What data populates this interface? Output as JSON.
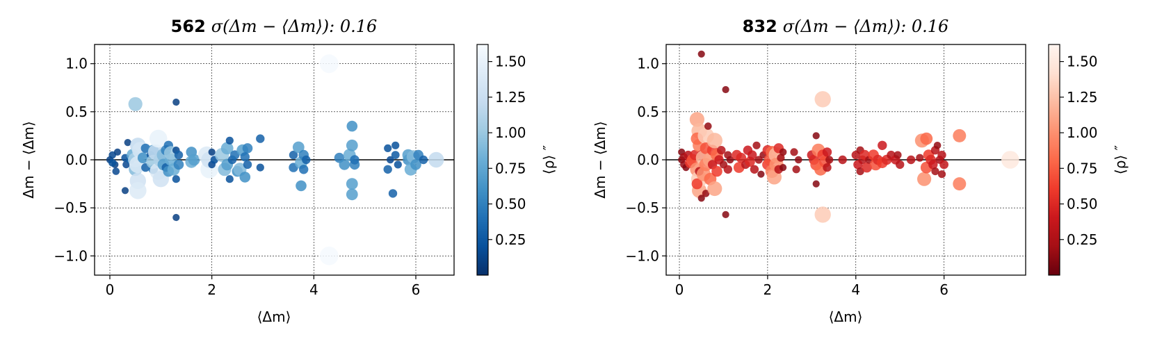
{
  "chart_data": [
    {
      "type": "scatter",
      "title_bold": "562",
      "title_rest": "σ(Δm − ⟨Δm⟩): 0.16",
      "xlabel": "⟨Δm⟩",
      "ylabel": "Δm − ⟨Δm⟩",
      "xlim": [
        -0.3,
        6.75
      ],
      "ylim": [
        -1.2,
        1.2
      ],
      "xticks": [
        0,
        2,
        4,
        6
      ],
      "yticks": [
        -1.0,
        -0.5,
        0.0,
        0.5,
        1.0
      ],
      "grid": true,
      "hline": 0,
      "colorbar": {
        "label": "⟨ρ⟩ ″",
        "cmap": "Blues_r",
        "range": [
          0.0,
          1.62
        ],
        "ticks": [
          0.25,
          0.5,
          0.75,
          1.0,
          1.25,
          1.5
        ],
        "stops": [
          "#08306b",
          "#08519c",
          "#2171b5",
          "#4292c6",
          "#6baed6",
          "#9ecae1",
          "#c6dbef",
          "#deebf7",
          "#f7fbff"
        ]
      },
      "points": [
        [
          0.0,
          0.0,
          0.1
        ],
        [
          0.05,
          0.05,
          0.15
        ],
        [
          0.1,
          -0.05,
          0.1
        ],
        [
          0.05,
          -0.03,
          0.2
        ],
        [
          0.15,
          0.08,
          0.1
        ],
        [
          0.12,
          -0.12,
          0.15
        ],
        [
          0.3,
          0.02,
          0.2
        ],
        [
          0.32,
          -0.05,
          0.15
        ],
        [
          0.35,
          0.18,
          0.1
        ],
        [
          0.3,
          -0.32,
          0.1
        ],
        [
          0.4,
          0.0,
          0.3
        ],
        [
          0.45,
          0.05,
          0.8
        ],
        [
          0.5,
          -0.1,
          0.9
        ],
        [
          0.5,
          0.58,
          1.0
        ],
        [
          0.55,
          0.15,
          1.2
        ],
        [
          0.55,
          -0.22,
          1.3
        ],
        [
          0.55,
          -0.32,
          1.4
        ],
        [
          0.5,
          0.0,
          1.1
        ],
        [
          0.6,
          0.1,
          1.35
        ],
        [
          0.55,
          -0.05,
          1.4
        ],
        [
          0.65,
          0.02,
          0.6
        ],
        [
          0.7,
          0.12,
          0.4
        ],
        [
          0.7,
          -0.08,
          0.3
        ],
        [
          0.8,
          0.05,
          0.2
        ],
        [
          0.85,
          -0.1,
          0.4
        ],
        [
          0.85,
          0.1,
          0.6
        ],
        [
          0.85,
          -0.02,
          1.0
        ],
        [
          0.9,
          0.08,
          1.2
        ],
        [
          0.95,
          -0.12,
          1.4
        ],
        [
          0.95,
          0.22,
          1.5
        ],
        [
          1.0,
          -0.2,
          1.3
        ],
        [
          1.0,
          0.0,
          1.1
        ],
        [
          1.05,
          0.05,
          0.9
        ],
        [
          1.05,
          -0.05,
          0.7
        ],
        [
          1.1,
          0.1,
          0.5
        ],
        [
          1.1,
          -0.08,
          0.3
        ],
        [
          1.15,
          0.15,
          0.4
        ],
        [
          1.15,
          -0.12,
          0.6
        ],
        [
          1.2,
          0.0,
          0.8
        ],
        [
          1.2,
          0.07,
          1.0
        ],
        [
          1.25,
          -0.1,
          0.8
        ],
        [
          1.3,
          0.6,
          0.1
        ],
        [
          1.3,
          -0.6,
          0.1
        ],
        [
          1.3,
          0.1,
          0.15
        ],
        [
          1.3,
          -0.2,
          0.2
        ],
        [
          1.35,
          0.05,
          0.3
        ],
        [
          1.35,
          -0.05,
          0.5
        ],
        [
          1.6,
          0.08,
          0.6
        ],
        [
          1.6,
          -0.02,
          0.8
        ],
        [
          1.65,
          0.0,
          0.7
        ],
        [
          1.9,
          0.05,
          1.4
        ],
        [
          1.95,
          -0.1,
          1.5
        ],
        [
          1.95,
          0.0,
          1.3
        ],
        [
          2.0,
          0.08,
          0.1
        ],
        [
          2.0,
          -0.05,
          0.15
        ],
        [
          2.05,
          0.0,
          0.2
        ],
        [
          2.2,
          0.05,
          1.0
        ],
        [
          2.25,
          -0.1,
          0.9
        ],
        [
          2.3,
          0.12,
          0.8
        ],
        [
          2.3,
          -0.05,
          0.7
        ],
        [
          2.35,
          0.2,
          0.2
        ],
        [
          2.35,
          -0.2,
          0.2
        ],
        [
          2.4,
          0.0,
          0.3
        ],
        [
          2.45,
          0.05,
          0.4
        ],
        [
          2.5,
          -0.12,
          0.6
        ],
        [
          2.55,
          -0.1,
          0.9
        ],
        [
          2.6,
          0.1,
          0.7
        ],
        [
          2.65,
          -0.18,
          0.6
        ],
        [
          2.7,
          0.12,
          0.5
        ],
        [
          2.65,
          0.03,
          0.4
        ],
        [
          2.7,
          -0.05,
          0.3
        ],
        [
          2.95,
          0.22,
          0.3
        ],
        [
          2.95,
          -0.08,
          0.2
        ],
        [
          3.6,
          0.05,
          0.3
        ],
        [
          3.6,
          -0.08,
          0.4
        ],
        [
          3.7,
          0.13,
          0.7
        ],
        [
          3.75,
          -0.03,
          0.8
        ],
        [
          3.75,
          -0.27,
          0.6
        ],
        [
          3.8,
          0.05,
          0.5
        ],
        [
          3.8,
          -0.1,
          0.4
        ],
        [
          3.85,
          0.0,
          0.3
        ],
        [
          4.3,
          1.0,
          1.6
        ],
        [
          4.3,
          -1.0,
          1.6
        ],
        [
          4.5,
          0.02,
          0.5
        ],
        [
          4.6,
          -0.05,
          0.6
        ],
        [
          4.7,
          0.05,
          0.8
        ],
        [
          4.75,
          0.35,
          0.6
        ],
        [
          4.75,
          -0.25,
          0.7
        ],
        [
          4.75,
          -0.36,
          0.7
        ],
        [
          4.75,
          0.15,
          0.7
        ],
        [
          4.8,
          -0.05,
          0.5
        ],
        [
          4.8,
          0.0,
          0.4
        ],
        [
          5.45,
          0.12,
          0.2
        ],
        [
          5.45,
          -0.1,
          0.3
        ],
        [
          5.5,
          0.0,
          0.15
        ],
        [
          5.55,
          -0.35,
          0.3
        ],
        [
          5.6,
          0.15,
          0.2
        ],
        [
          5.6,
          0.05,
          0.25
        ],
        [
          5.65,
          -0.05,
          0.2
        ],
        [
          5.85,
          0.0,
          0.6
        ],
        [
          5.85,
          0.05,
          0.7
        ],
        [
          5.9,
          -0.1,
          0.8
        ],
        [
          5.95,
          0.03,
          0.9
        ],
        [
          6.0,
          -0.05,
          0.6
        ],
        [
          6.05,
          0.05,
          0.5
        ],
        [
          6.15,
          0.0,
          0.3
        ],
        [
          6.4,
          0.0,
          1.2
        ]
      ]
    },
    {
      "type": "scatter",
      "title_bold": "832",
      "title_rest": "σ(Δm − ⟨Δm⟩): 0.16",
      "xlabel": "⟨Δm⟩",
      "ylabel": "Δm − ⟨Δm⟩",
      "xlim": [
        -0.3,
        7.85
      ],
      "ylim": [
        -1.2,
        1.2
      ],
      "xticks": [
        0,
        2,
        4,
        6
      ],
      "yticks": [
        -1.0,
        -0.5,
        0.0,
        0.5,
        1.0
      ],
      "grid": true,
      "hline": 0,
      "colorbar": {
        "label": "⟨ρ⟩ ″",
        "cmap": "Reds_r",
        "range": [
          0.0,
          1.62
        ],
        "ticks": [
          0.25,
          0.5,
          0.75,
          1.0,
          1.25,
          1.5
        ],
        "stops": [
          "#67000d",
          "#a50f15",
          "#cb181d",
          "#ef3b2c",
          "#fb6a4a",
          "#fc9272",
          "#fcbba1",
          "#fee0d2",
          "#fff5f0"
        ]
      },
      "points": [
        [
          0.05,
          0.0,
          0.1
        ],
        [
          0.05,
          0.08,
          0.1
        ],
        [
          0.1,
          -0.05,
          0.15
        ],
        [
          0.1,
          0.03,
          0.2
        ],
        [
          0.15,
          -0.08,
          0.1
        ],
        [
          0.2,
          0.05,
          0.3
        ],
        [
          0.25,
          -0.03,
          0.6
        ],
        [
          0.3,
          0.0,
          0.7
        ],
        [
          0.35,
          0.05,
          0.5
        ],
        [
          0.4,
          0.42,
          1.1
        ],
        [
          0.45,
          0.3,
          1.2
        ],
        [
          0.45,
          -0.32,
          1.1
        ],
        [
          0.4,
          -0.1,
          1.0
        ],
        [
          0.45,
          0.15,
          0.9
        ],
        [
          0.45,
          -0.2,
          1.3
        ],
        [
          0.4,
          0.22,
          0.8
        ],
        [
          0.4,
          -0.25,
          0.6
        ],
        [
          0.5,
          1.1,
          0.1
        ],
        [
          0.5,
          -0.4,
          0.1
        ],
        [
          0.45,
          -0.12,
          0.3
        ],
        [
          0.5,
          0.05,
          0.4
        ],
        [
          0.55,
          0.02,
          1.2
        ],
        [
          0.55,
          -0.15,
          1.0
        ],
        [
          0.6,
          0.25,
          1.3
        ],
        [
          0.6,
          -0.05,
          0.9
        ],
        [
          0.6,
          0.12,
          0.7
        ],
        [
          0.6,
          -0.35,
          0.15
        ],
        [
          0.65,
          0.35,
          0.15
        ],
        [
          0.7,
          0.0,
          1.1
        ],
        [
          0.7,
          -0.2,
          0.8
        ],
        [
          0.75,
          0.1,
          0.6
        ],
        [
          0.75,
          -0.05,
          0.4
        ],
        [
          0.8,
          0.2,
          1.2
        ],
        [
          0.8,
          -0.3,
          1.1
        ],
        [
          0.85,
          0.05,
          0.8
        ],
        [
          0.85,
          -0.12,
          0.6
        ],
        [
          0.9,
          0.0,
          0.4
        ],
        [
          0.95,
          0.1,
          0.3
        ],
        [
          1.0,
          -0.05,
          0.2
        ],
        [
          1.05,
          0.73,
          0.1
        ],
        [
          1.05,
          -0.57,
          0.1
        ],
        [
          1.1,
          0.05,
          0.2
        ],
        [
          1.1,
          -0.1,
          0.3
        ],
        [
          1.15,
          0.0,
          0.15
        ],
        [
          1.3,
          0.05,
          0.5
        ],
        [
          1.35,
          -0.08,
          0.6
        ],
        [
          1.4,
          0.02,
          0.5
        ],
        [
          1.5,
          -0.05,
          0.3
        ],
        [
          1.55,
          0.1,
          0.4
        ],
        [
          1.6,
          -0.02,
          0.5
        ],
        [
          1.65,
          0.05,
          0.4
        ],
        [
          1.7,
          -0.1,
          0.3
        ],
        [
          1.75,
          0.15,
          0.2
        ],
        [
          1.8,
          0.0,
          0.2
        ],
        [
          1.85,
          -0.15,
          0.1
        ],
        [
          1.9,
          0.05,
          0.15
        ],
        [
          2.0,
          0.1,
          0.5
        ],
        [
          2.0,
          -0.05,
          0.6
        ],
        [
          2.05,
          0.0,
          0.7
        ],
        [
          2.1,
          0.08,
          0.8
        ],
        [
          2.1,
          -0.12,
          0.9
        ],
        [
          2.15,
          -0.18,
          1.1
        ],
        [
          2.2,
          0.05,
          1.2
        ],
        [
          2.2,
          -0.05,
          1.0
        ],
        [
          2.25,
          0.12,
          0.5
        ],
        [
          2.25,
          -0.1,
          0.3
        ],
        [
          2.3,
          0.02,
          0.2
        ],
        [
          2.35,
          0.08,
          0.15
        ],
        [
          2.35,
          -0.08,
          0.1
        ],
        [
          2.6,
          0.08,
          0.2
        ],
        [
          2.65,
          -0.1,
          0.2
        ],
        [
          2.7,
          0.0,
          0.15
        ],
        [
          3.0,
          0.05,
          0.4
        ],
        [
          3.05,
          0.0,
          0.5
        ],
        [
          3.1,
          -0.05,
          0.7
        ],
        [
          3.1,
          0.25,
          0.1
        ],
        [
          3.1,
          -0.25,
          0.1
        ],
        [
          3.15,
          0.1,
          0.9
        ],
        [
          3.2,
          -0.1,
          0.8
        ],
        [
          3.25,
          0.05,
          0.6
        ],
        [
          3.25,
          0.63,
          1.3
        ],
        [
          3.25,
          -0.57,
          1.3
        ],
        [
          3.3,
          -0.02,
          0.7
        ],
        [
          3.35,
          0.08,
          0.4
        ],
        [
          3.35,
          -0.08,
          0.3
        ],
        [
          3.4,
          0.0,
          0.2
        ],
        [
          3.7,
          0.0,
          0.3
        ],
        [
          4.0,
          0.05,
          0.3
        ],
        [
          4.05,
          -0.05,
          0.4
        ],
        [
          4.1,
          0.1,
          0.2
        ],
        [
          4.1,
          -0.12,
          0.2
        ],
        [
          4.15,
          0.0,
          0.3
        ],
        [
          4.2,
          0.05,
          0.5
        ],
        [
          4.25,
          -0.08,
          0.5
        ],
        [
          4.3,
          0.0,
          0.2
        ],
        [
          4.4,
          0.05,
          0.6
        ],
        [
          4.45,
          -0.05,
          0.7
        ],
        [
          4.5,
          0.0,
          0.5
        ],
        [
          4.6,
          0.15,
          0.4
        ],
        [
          4.6,
          -0.03,
          0.6
        ],
        [
          4.7,
          0.0,
          0.5
        ],
        [
          4.8,
          0.05,
          0.3
        ],
        [
          4.9,
          0.0,
          0.4
        ],
        [
          4.95,
          0.05,
          0.2
        ],
        [
          5.0,
          -0.05,
          0.3
        ],
        [
          5.25,
          0.0,
          0.3
        ],
        [
          5.45,
          0.02,
          0.2
        ],
        [
          5.5,
          0.2,
          1.0
        ],
        [
          5.55,
          -0.2,
          1.0
        ],
        [
          5.6,
          0.22,
          0.8
        ],
        [
          5.6,
          -0.08,
          0.7
        ],
        [
          5.65,
          0.05,
          0.6
        ],
        [
          5.7,
          0.0,
          0.5
        ],
        [
          5.75,
          -0.05,
          0.4
        ],
        [
          5.8,
          0.1,
          0.3
        ],
        [
          5.8,
          -0.12,
          0.2
        ],
        [
          5.85,
          0.15,
          0.15
        ],
        [
          5.9,
          0.0,
          0.25
        ],
        [
          5.95,
          0.05,
          0.3
        ],
        [
          5.95,
          -0.15,
          0.2
        ],
        [
          6.0,
          -0.05,
          0.35
        ],
        [
          6.35,
          0.25,
          0.9
        ],
        [
          6.35,
          -0.25,
          0.9
        ],
        [
          7.5,
          0.0,
          1.5
        ]
      ]
    }
  ]
}
